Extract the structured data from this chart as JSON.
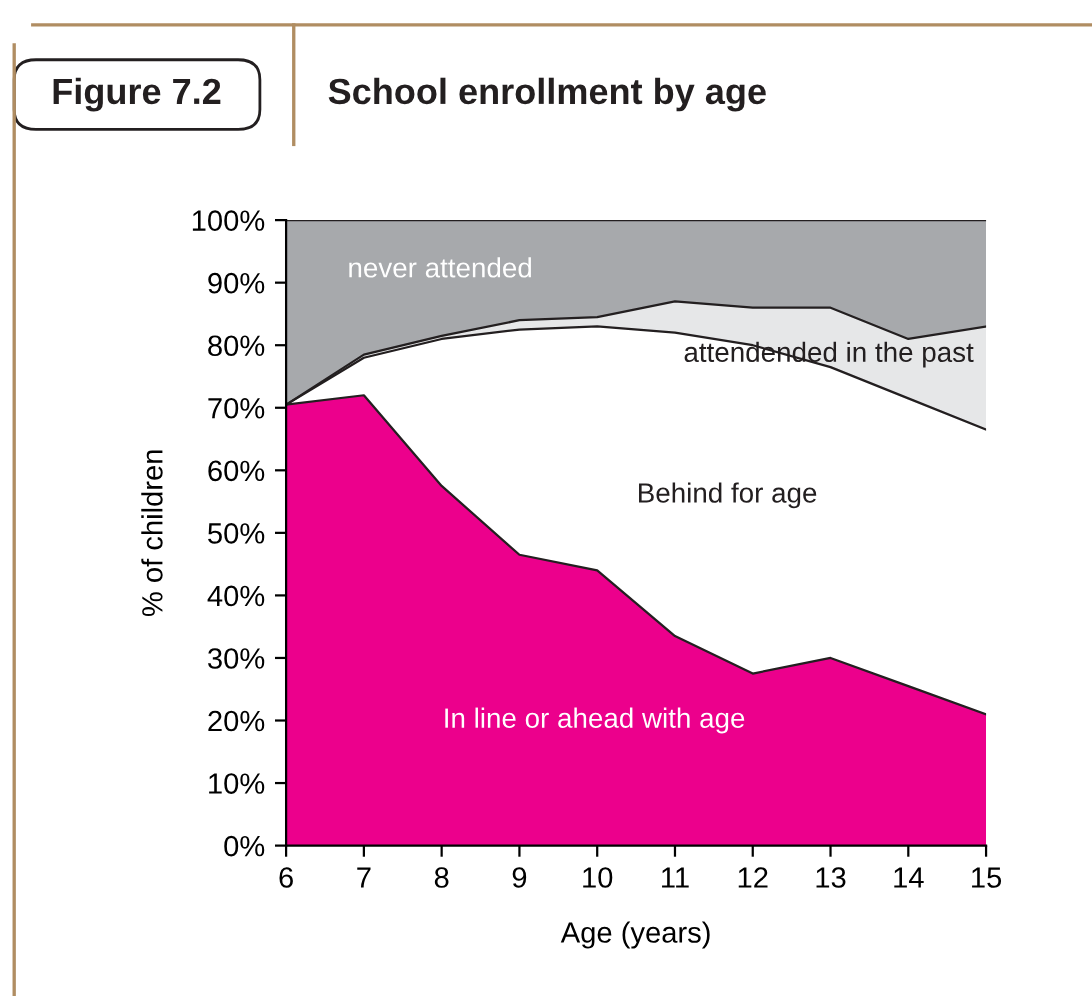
{
  "chart_data": {
    "type": "area",
    "stacked": true,
    "title": "School enrollment by age",
    "xlabel": "Age (years)",
    "ylabel": "% of children",
    "x": [
      6,
      7,
      8,
      9,
      10,
      11,
      12,
      13,
      14,
      15
    ],
    "series": [
      {
        "color": "#ec008c",
        "values": [
          70.5,
          72,
          57.5,
          46.5,
          44,
          33.5,
          27.5,
          30,
          25.5,
          21
        ]
      },
      {
        "color": "#ffffff",
        "values": [
          0,
          6,
          23.5,
          36,
          39,
          48.5,
          52.5,
          46.5,
          46,
          45.5
        ]
      },
      {
        "color": "#e6e7e8",
        "values": [
          0,
          0.5,
          0.5,
          1.5,
          1.5,
          5,
          6,
          9.5,
          9.5,
          16.5
        ]
      },
      {
        "color": "#a7a9ac",
        "values": [
          29.5,
          21.5,
          18.5,
          16,
          15.5,
          13,
          14,
          14,
          19,
          17
        ]
      }
    ],
    "xlim": [
      6,
      15
    ],
    "xticks": [
      6,
      7,
      8,
      9,
      10,
      11,
      12,
      13,
      14,
      15
    ],
    "ylim": [
      0,
      100
    ],
    "yticks": [
      {
        "value": 0,
        "label": "0%"
      },
      {
        "value": 10,
        "label": "10%"
      },
      {
        "value": 20,
        "label": "20%"
      },
      {
        "value": 30,
        "label": "30%"
      },
      {
        "value": 40,
        "label": "40%"
      },
      {
        "value": 50,
        "label": "50%"
      },
      {
        "value": 60,
        "label": "60%"
      },
      {
        "value": 70,
        "label": "70%"
      },
      {
        "value": 80,
        "label": "80%"
      },
      {
        "value": 90,
        "label": "90%"
      },
      {
        "value": 100,
        "label": "100%"
      }
    ],
    "grid": false,
    "legend": false,
    "annotations": [
      "Figure 7.2",
      "never attended",
      "attendended in the past",
      "Behind for age",
      "In line or ahead with age"
    ]
  }
}
